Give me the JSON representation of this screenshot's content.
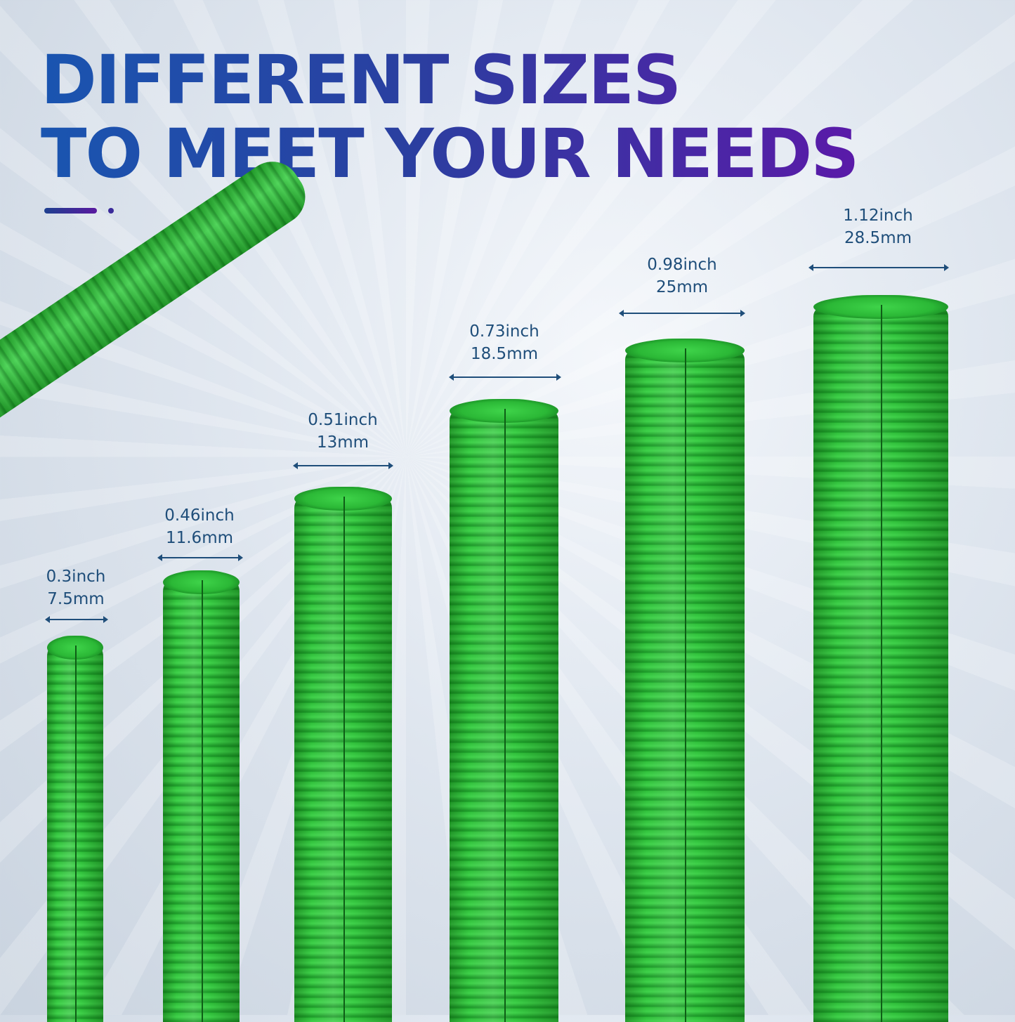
{
  "headline": {
    "line1": "DIFFERENT SIZES",
    "line2": "TO MEET YOUR NEEDS"
  },
  "colors": {
    "title_start": "#1a55b0",
    "title_end": "#5a1aa8",
    "label_text": "#1f4e7a",
    "tube_green": "#2fbf3a"
  },
  "sizes": [
    {
      "inch": "0.3inch",
      "mm": "7.5mm"
    },
    {
      "inch": "0.46inch",
      "mm": "11.6mm"
    },
    {
      "inch": "0.51inch",
      "mm": "13mm"
    },
    {
      "inch": "0.73inch",
      "mm": "18.5mm"
    },
    {
      "inch": "0.98inch",
      "mm": "25mm"
    },
    {
      "inch": "1.12inch",
      "mm": "28.5mm"
    }
  ]
}
